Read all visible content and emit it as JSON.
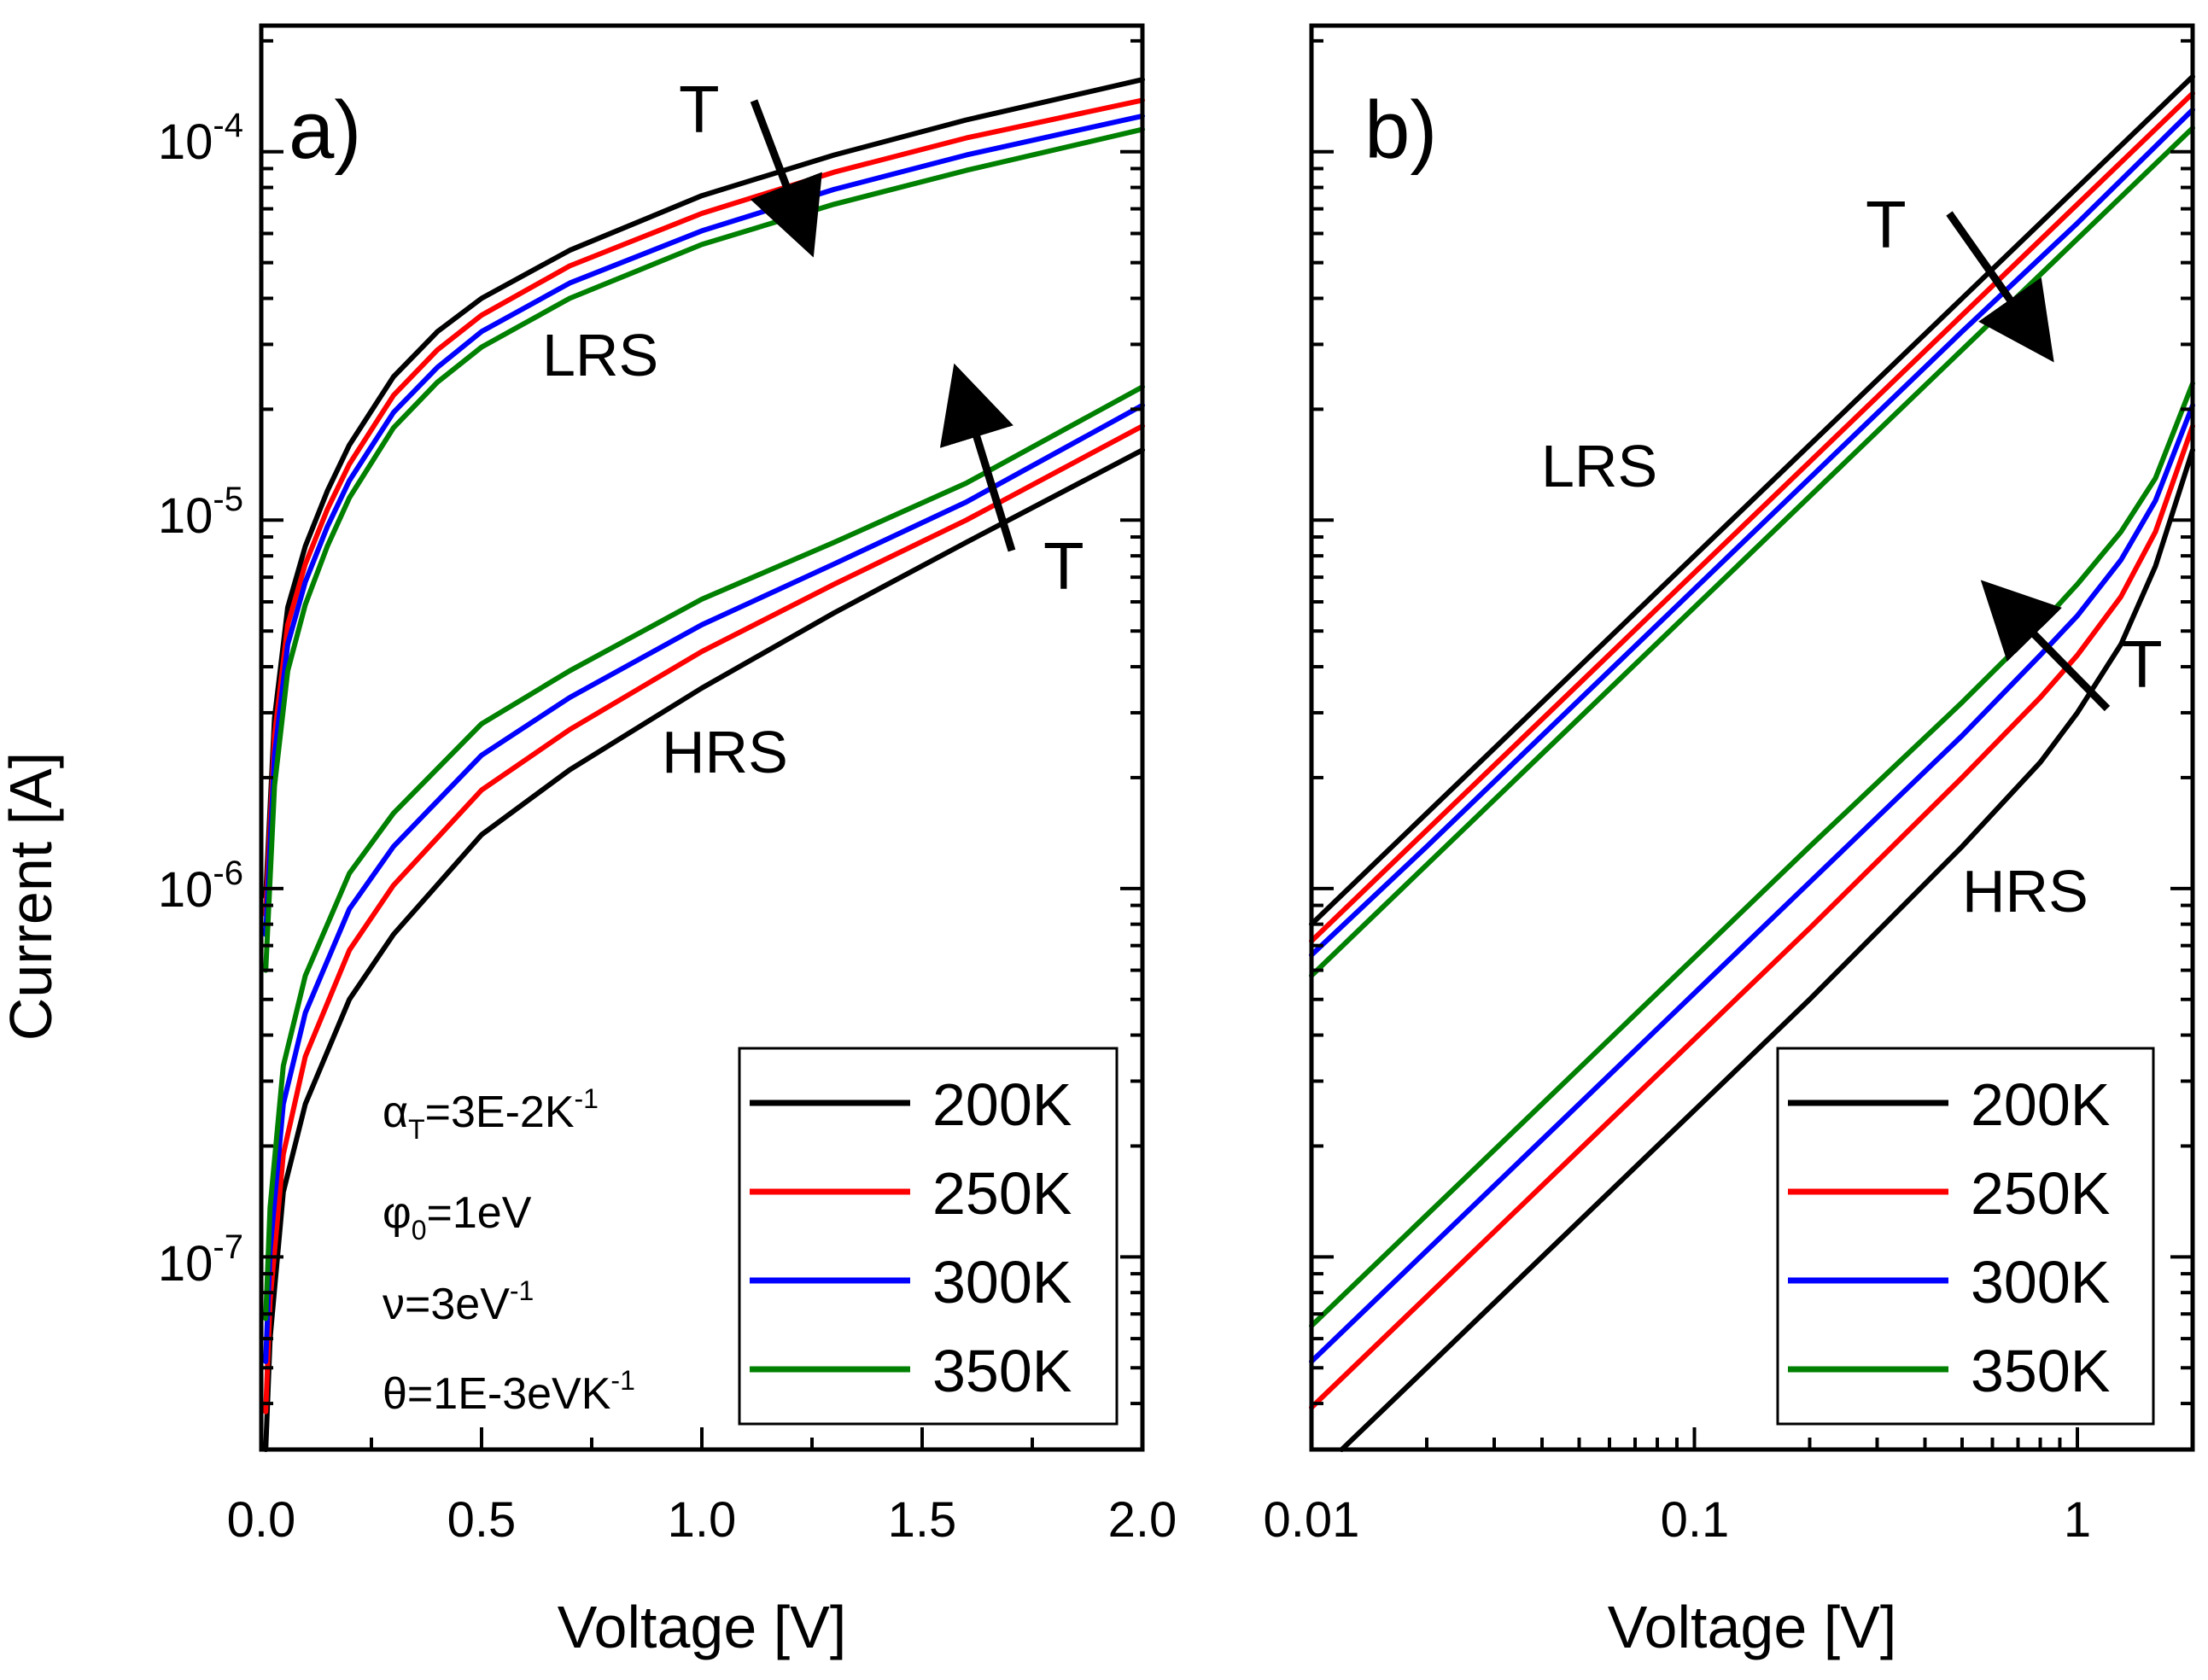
{
  "figure": {
    "ylabel": "Current [A]"
  },
  "colors": {
    "200K": "#000000",
    "250K": "#ff0000",
    "300K": "#0000ff",
    "350K": "#008000"
  },
  "chart_data": [
    {
      "type": "line",
      "panel_label": "a)",
      "xscale": "linear",
      "yscale": "log",
      "xlabel": "Voltage [V]",
      "ylabel": "Current [A]",
      "xlim": [
        0,
        2
      ],
      "ylim": [
        3e-08,
        0.00022
      ],
      "x_ticks": [
        0,
        0.5,
        1.0,
        1.5,
        2.0
      ],
      "x_tick_labels": [
        "0.0",
        "0.5",
        "1.0",
        "1.5",
        "2.0"
      ],
      "y_ticks": [
        1e-07,
        1e-06,
        1e-05,
        0.0001
      ],
      "y_tick_labels": [
        {
          "base": "10",
          "exp": "-7"
        },
        {
          "base": "10",
          "exp": "-6"
        },
        {
          "base": "10",
          "exp": "-5"
        },
        {
          "base": "10",
          "exp": "-4"
        }
      ],
      "annotations": {
        "lrs": "LRS",
        "hrs": "HRS",
        "t_top": "T",
        "t_bottom": "T",
        "params": [
          {
            "sym": "α",
            "sub": "T",
            "rest": "=3E-2K",
            "sup": "-1"
          },
          {
            "sym": "φ",
            "sub": "0",
            "rest": "=1eV",
            "sup": ""
          },
          {
            "sym": "ν",
            "sub": "",
            "rest": "=3eV",
            "sup": "-1"
          },
          {
            "sym": "θ",
            "sub": "",
            "rest": "=1E-3eVK",
            "sup": "-1"
          }
        ]
      },
      "legend": [
        "200K",
        "250K",
        "300K",
        "350K"
      ],
      "series": [
        {
          "name": "200K",
          "state": "LRS",
          "x": [
            0.01,
            0.03,
            0.06,
            0.1,
            0.15,
            0.2,
            0.3,
            0.4,
            0.5,
            0.7,
            1.0,
            1.3,
            1.6,
            2.0
          ],
          "y": [
            9.5e-07,
            2.9e-06,
            5.8e-06,
            8.5e-06,
            1.2e-05,
            1.6e-05,
            2.45e-05,
            3.25e-05,
            4e-05,
            5.4e-05,
            7.6e-05,
            9.8e-05,
            0.000122,
            0.000157
          ]
        },
        {
          "name": "250K",
          "state": "LRS",
          "x": [
            0.01,
            0.03,
            0.06,
            0.1,
            0.15,
            0.2,
            0.3,
            0.4,
            0.5,
            0.7,
            1.0,
            1.3,
            1.6,
            2.0
          ],
          "y": [
            8.5e-07,
            2.6e-06,
            5.2e-06,
            7.6e-06,
            1.07e-05,
            1.42e-05,
            2.18e-05,
            2.9e-05,
            3.6e-05,
            4.9e-05,
            6.8e-05,
            8.8e-05,
            0.000109,
            0.000138
          ]
        },
        {
          "name": "300K",
          "state": "LRS",
          "x": [
            0.01,
            0.03,
            0.06,
            0.1,
            0.15,
            0.2,
            0.3,
            0.4,
            0.5,
            0.7,
            1.0,
            1.3,
            1.6,
            2.0
          ],
          "y": [
            7.5e-07,
            2.3e-06,
            4.6e-06,
            6.8e-06,
            9.6e-06,
            1.28e-05,
            1.96e-05,
            2.6e-05,
            3.25e-05,
            4.4e-05,
            6.1e-05,
            7.9e-05,
            9.8e-05,
            0.000125
          ]
        },
        {
          "name": "350K",
          "state": "LRS",
          "x": [
            0.01,
            0.03,
            0.06,
            0.1,
            0.15,
            0.2,
            0.3,
            0.4,
            0.5,
            0.7,
            1.0,
            1.3,
            1.6,
            2.0
          ],
          "y": [
            6e-07,
            1.9e-06,
            3.9e-06,
            5.9e-06,
            8.5e-06,
            1.15e-05,
            1.78e-05,
            2.37e-05,
            2.95e-05,
            4e-05,
            5.6e-05,
            7.2e-05,
            8.9e-05,
            0.000115
          ]
        },
        {
          "name": "200K",
          "state": "HRS",
          "x": [
            0.01,
            0.02,
            0.05,
            0.1,
            0.2,
            0.3,
            0.5,
            0.7,
            1.0,
            1.3,
            1.6,
            2.0
          ],
          "y": [
            3e-08,
            6e-08,
            1.5e-07,
            2.6e-07,
            5e-07,
            7.5e-07,
            1.4e-06,
            2.1e-06,
            3.5e-06,
            5.6e-06,
            8.7e-06,
            1.55e-05
          ]
        },
        {
          "name": "250K",
          "state": "HRS",
          "x": [
            0.01,
            0.02,
            0.05,
            0.1,
            0.2,
            0.3,
            0.5,
            0.7,
            1.0,
            1.3,
            1.6,
            2.0
          ],
          "y": [
            3.8e-08,
            7.6e-08,
            1.9e-07,
            3.5e-07,
            6.8e-07,
            1.02e-06,
            1.85e-06,
            2.7e-06,
            4.4e-06,
            6.7e-06,
            1e-05,
            1.8e-05
          ]
        },
        {
          "name": "300K",
          "state": "HRS",
          "x": [
            0.01,
            0.02,
            0.05,
            0.1,
            0.2,
            0.3,
            0.5,
            0.7,
            1.0,
            1.3,
            1.6,
            2.0
          ],
          "y": [
            5.2e-08,
            1.04e-07,
            2.6e-07,
            4.6e-07,
            8.8e-07,
            1.3e-06,
            2.3e-06,
            3.3e-06,
            5.2e-06,
            7.6e-06,
            1.12e-05,
            2.05e-05
          ]
        },
        {
          "name": "350K",
          "state": "HRS",
          "x": [
            0.01,
            0.02,
            0.05,
            0.1,
            0.2,
            0.3,
            0.5,
            0.7,
            1.0,
            1.3,
            1.6,
            2.0
          ],
          "y": [
            6.8e-08,
            1.36e-07,
            3.3e-07,
            5.8e-07,
            1.1e-06,
            1.6e-06,
            2.8e-06,
            3.9e-06,
            6.1e-06,
            8.7e-06,
            1.26e-05,
            2.3e-05
          ]
        }
      ]
    },
    {
      "type": "line",
      "panel_label": "b)",
      "xscale": "log",
      "yscale": "log",
      "xlabel": "Voltage [V]",
      "xlim": [
        0.01,
        2
      ],
      "ylim": [
        3e-08,
        0.00022
      ],
      "x_ticks": [
        0.01,
        0.1,
        1
      ],
      "x_tick_labels": [
        "0.01",
        "0.1",
        "1"
      ],
      "y_ticks": [
        1e-07,
        1e-06,
        1e-05,
        0.0001
      ],
      "annotations": {
        "lrs": "LRS",
        "hrs": "HRS",
        "t_top": "T",
        "t_bottom": "T"
      },
      "legend": [
        "200K",
        "250K",
        "300K",
        "350K"
      ],
      "series": [
        {
          "name": "200K",
          "state": "LRS",
          "x": [
            0.01,
            0.02,
            0.05,
            0.1,
            0.2,
            0.5,
            1.0,
            2.0
          ],
          "y": [
            8e-07,
            1.6e-06,
            4e-06,
            8e-06,
            1.6e-05,
            4e-05,
            8e-05,
            0.00016
          ]
        },
        {
          "name": "250K",
          "state": "LRS",
          "x": [
            0.01,
            0.02,
            0.05,
            0.1,
            0.2,
            0.5,
            1.0,
            2.0
          ],
          "y": [
            7.2e-07,
            1.44e-06,
            3.6e-06,
            7.2e-06,
            1.44e-05,
            3.6e-05,
            7.2e-05,
            0.000144
          ]
        },
        {
          "name": "300K",
          "state": "LRS",
          "x": [
            0.01,
            0.02,
            0.05,
            0.1,
            0.2,
            0.5,
            1.0,
            2.0
          ],
          "y": [
            6.6e-07,
            1.3e-06,
            3.25e-06,
            6.5e-06,
            1.3e-05,
            3.25e-05,
            6.4e-05,
            0.00013
          ]
        },
        {
          "name": "350K",
          "state": "LRS",
          "x": [
            0.01,
            0.02,
            0.05,
            0.1,
            0.2,
            0.5,
            1.0,
            2.0
          ],
          "y": [
            5.8e-07,
            1.16e-06,
            2.9e-06,
            5.8e-06,
            1.16e-05,
            2.9e-05,
            5.8e-05,
            0.000116
          ]
        },
        {
          "name": "200K",
          "state": "HRS",
          "x": [
            0.012,
            0.02,
            0.05,
            0.1,
            0.2,
            0.5,
            0.8,
            1.0,
            1.3,
            1.6,
            2.0
          ],
          "y": [
            3e-08,
            5e-08,
            1.25e-07,
            2.5e-07,
            5e-07,
            1.3e-06,
            2.2e-06,
            3e-06,
            4.6e-06,
            7.5e-06,
            1.55e-05
          ]
        },
        {
          "name": "250K",
          "state": "HRS",
          "x": [
            0.01,
            0.02,
            0.05,
            0.1,
            0.2,
            0.5,
            0.8,
            1.0,
            1.3,
            1.6,
            2.0
          ],
          "y": [
            3.9e-08,
            7.8e-08,
            1.95e-07,
            3.9e-07,
            7.8e-07,
            2e-06,
            3.3e-06,
            4.3e-06,
            6.2e-06,
            9.3e-06,
            1.8e-05
          ]
        },
        {
          "name": "300K",
          "state": "HRS",
          "x": [
            0.01,
            0.02,
            0.05,
            0.1,
            0.2,
            0.5,
            0.8,
            1.0,
            1.3,
            1.6,
            2.0
          ],
          "y": [
            5.2e-08,
            1.04e-07,
            2.6e-07,
            5.2e-07,
            1.04e-06,
            2.6e-06,
            4.3e-06,
            5.5e-06,
            7.8e-06,
            1.13e-05,
            2.05e-05
          ]
        },
        {
          "name": "350K",
          "state": "HRS",
          "x": [
            0.01,
            0.02,
            0.05,
            0.1,
            0.2,
            0.5,
            0.8,
            1.0,
            1.3,
            1.6,
            2.0
          ],
          "y": [
            6.5e-08,
            1.3e-07,
            3.25e-07,
            6.5e-07,
            1.3e-06,
            3.2e-06,
            5.2e-06,
            6.7e-06,
            9.3e-06,
            1.3e-05,
            2.35e-05
          ]
        }
      ]
    }
  ]
}
